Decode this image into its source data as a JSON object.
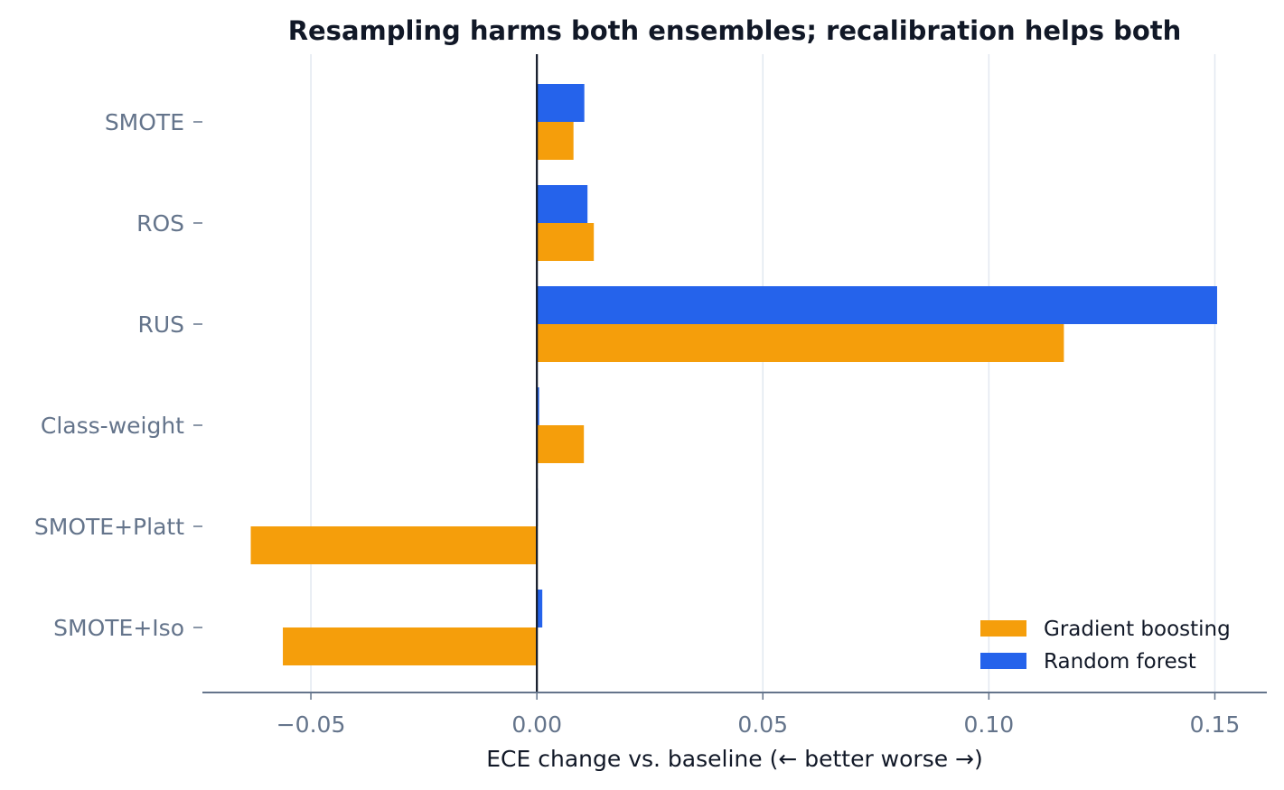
{
  "chart_data": {
    "type": "bar",
    "orientation": "horizontal",
    "title": "Resampling harms both ensembles; recalibration helps both",
    "xlabel": "ECE change vs. baseline  (← better   worse →)",
    "ylabel": "",
    "categories": [
      "SMOTE",
      "ROS",
      "RUS",
      "Class-weight",
      "SMOTE+Platt",
      "SMOTE+Iso"
    ],
    "series": [
      {
        "name": "Random forest",
        "color": "#2563eb",
        "values": [
          0.0105,
          0.0112,
          0.1505,
          0.0005,
          0.0002,
          0.0012
        ]
      },
      {
        "name": "Gradient boosting",
        "color": "#f59e0b",
        "values": [
          0.0081,
          0.0126,
          0.1166,
          0.0104,
          -0.0633,
          -0.0562
        ]
      }
    ],
    "xlim": [
      -0.074,
      0.1615
    ],
    "xticks": [
      -0.05,
      0.0,
      0.05,
      0.1,
      0.15
    ],
    "xtick_labels": [
      "−0.05",
      "0.00",
      "0.05",
      "0.10",
      "0.15"
    ],
    "legend": {
      "placement": "bottom-right",
      "entries": [
        "Gradient boosting",
        "Random forest"
      ]
    },
    "grid": "vertical",
    "zero_line": true
  }
}
